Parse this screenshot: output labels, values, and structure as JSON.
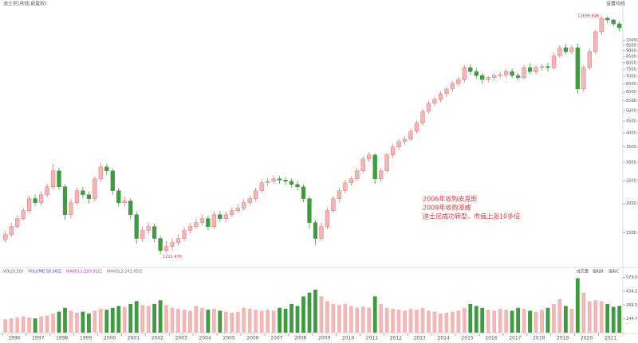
{
  "chart_data": [
    {
      "type": "candlestick",
      "title": "迪士尼(月线,前复权)",
      "right_label": "设置均线",
      "log_scale": true,
      "ylim": [
        1100,
        13500
      ],
      "yticks": [
        {
          "value": 1500,
          "label": "1500.00"
        },
        {
          "value": 2000,
          "label": "2000.00"
        },
        {
          "value": 2500,
          "label": "2500.00"
        },
        {
          "value": 3000,
          "label": "3000.00"
        },
        {
          "value": 3500,
          "label": "3500.00"
        },
        {
          "value": 4000,
          "label": "4000.00"
        },
        {
          "value": 4500,
          "label": "4500.00"
        },
        {
          "value": 5000,
          "label": "5000.00"
        },
        {
          "value": 5500,
          "label": "5500.00"
        },
        {
          "value": 6000,
          "label": "6000.00"
        },
        {
          "value": 6500,
          "label": "6500.00"
        },
        {
          "value": 7000,
          "label": "7000.00"
        },
        {
          "value": 7500,
          "label": "7500.00"
        },
        {
          "value": 8000,
          "label": "8000.00"
        },
        {
          "value": 8500,
          "label": "8500.00"
        },
        {
          "value": 9000,
          "label": "9000.00"
        },
        {
          "value": 9500,
          "label": "9500.00"
        },
        {
          "value": 10000,
          "label": "10000.00"
        }
      ],
      "up_color": "#f3b6b6",
      "up_stroke": "#e07878",
      "down_color": "#3f9b3f",
      "x_labels": [
        "1996",
        "1997",
        "1998",
        "1999",
        "2000",
        "2001",
        "2002",
        "2003",
        "2004",
        "2005",
        "2006",
        "2007",
        "2008",
        "2009",
        "2010",
        "2011",
        "2012",
        "2013",
        "2014",
        "2015",
        "2016",
        "2017",
        "2018",
        "2019",
        "2020",
        "2021"
      ],
      "open": [
        1400,
        1474,
        1594,
        1724,
        1864,
        2097,
        2017,
        2180,
        2357,
        2757,
        2357,
        1793,
        2017,
        2268,
        2180,
        2097,
        2550,
        2867,
        2757,
        2268,
        2017,
        2050,
        1793,
        1418,
        1533,
        1594,
        1418,
        1260,
        1311,
        1361,
        1418,
        1533,
        1594,
        1658,
        1724,
        1594,
        1793,
        1724,
        1793,
        1864,
        1909,
        2017,
        2097,
        2268,
        2452,
        2491,
        2550,
        2520,
        2491,
        2414,
        2357,
        2097,
        1658,
        1418,
        1594,
        1864,
        2097,
        2268,
        2452,
        2550,
        2757,
        3101,
        3225,
        2550,
        2757,
        3225,
        3487,
        3683,
        3770,
        4077,
        4409,
        4958,
        5362,
        5577,
        5890,
        6174,
        6521,
        6781,
        7625,
        7333,
        7051,
        6781,
        6900,
        7051,
        7100,
        7333,
        7051,
        6900,
        7625,
        7333,
        7625,
        7700,
        7625,
        8575,
        9273,
        8918,
        9273,
        6174,
        7625,
        8918,
        10845,
        12400,
        12195,
        11727
      ],
      "high": [
        1530,
        1650,
        1780,
        1920,
        2160,
        2180,
        2250,
        2430,
        2950,
        2850,
        2420,
        2090,
        2340,
        2360,
        2250,
        2620,
        2980,
        2960,
        2820,
        2330,
        2150,
        2100,
        1850,
        1600,
        1660,
        1640,
        1460,
        1380,
        1420,
        1480,
        1590,
        1650,
        1720,
        1790,
        1780,
        1850,
        1860,
        1850,
        1930,
        1980,
        2090,
        2170,
        2340,
        2530,
        2580,
        2640,
        2620,
        2600,
        2560,
        2500,
        2420,
        2150,
        1700,
        1660,
        1920,
        2160,
        2340,
        2530,
        2630,
        2840,
        3190,
        3320,
        3280,
        2840,
        3310,
        3580,
        3780,
        3870,
        4190,
        4530,
        5090,
        5500,
        5720,
        6040,
        6330,
        6680,
        6950,
        7820,
        7900,
        7600,
        7200,
        7060,
        7230,
        7280,
        7520,
        7550,
        7230,
        7820,
        7950,
        7820,
        7900,
        8000,
        8800,
        9510,
        9600,
        9500,
        9650,
        7820,
        9150,
        11100,
        12695.846,
        12600,
        12300,
        12000
      ],
      "low": [
        1360,
        1440,
        1560,
        1690,
        1820,
        1950,
        1960,
        2120,
        2300,
        2290,
        1700,
        1720,
        1960,
        2100,
        2000,
        2040,
        2480,
        2650,
        2180,
        1940,
        1930,
        1720,
        1350,
        1370,
        1480,
        1370,
        1211.476,
        1235,
        1250,
        1320,
        1380,
        1490,
        1550,
        1610,
        1540,
        1560,
        1670,
        1670,
        1740,
        1820,
        1860,
        1960,
        2040,
        2210,
        2380,
        2420,
        2430,
        2400,
        2330,
        2280,
        2020,
        1560,
        1330,
        1380,
        1550,
        1820,
        2040,
        2200,
        2380,
        2490,
        2700,
        3010,
        2420,
        2480,
        2700,
        3140,
        3400,
        3560,
        3690,
        3980,
        4300,
        4840,
        5200,
        5420,
        5720,
        5990,
        6330,
        6600,
        7100,
        6850,
        6500,
        6580,
        6700,
        6850,
        6900,
        6850,
        6700,
        6780,
        7150,
        7120,
        7400,
        7300,
        7500,
        8400,
        8700,
        8700,
        5900,
        6000,
        7450,
        8700,
        10500,
        11800,
        11400,
        10900
      ],
      "close": [
        1474,
        1594,
        1724,
        1864,
        2097,
        2017,
        2180,
        2357,
        2757,
        2357,
        1793,
        2017,
        2268,
        2180,
        2097,
        2550,
        2867,
        2757,
        2268,
        2017,
        2050,
        1793,
        1418,
        1533,
        1594,
        1418,
        1260,
        1311,
        1361,
        1418,
        1533,
        1594,
        1658,
        1724,
        1594,
        1793,
        1724,
        1793,
        1864,
        1909,
        2017,
        2097,
        2268,
        2452,
        2491,
        2550,
        2520,
        2491,
        2414,
        2357,
        2097,
        1658,
        1418,
        1594,
        1864,
        2097,
        2268,
        2452,
        2550,
        2757,
        3101,
        3225,
        2550,
        2757,
        3225,
        3487,
        3683,
        3770,
        4077,
        4409,
        4958,
        5362,
        5577,
        5890,
        6174,
        6521,
        6781,
        7625,
        7333,
        7051,
        6781,
        6900,
        7051,
        7100,
        7333,
        7051,
        6900,
        7625,
        7333,
        7625,
        7700,
        7625,
        8575,
        9273,
        8918,
        9273,
        6174,
        7625,
        8918,
        10845,
        12400,
        12195,
        11727,
        11277
      ],
      "notes": [
        "2006年收购皮克斯",
        "2009年收购漫威",
        "迪士尼成功转型，市值上涨10多倍"
      ]
    },
    {
      "type": "volume",
      "legend": [
        "VOL(5,10)",
        "VOLUME:58.06亿",
        "MAVOL1:299.91亿",
        "MAVOL2:241.85亿"
      ],
      "buttons": [
        "成交量",
        "指标B",
        "指标C"
      ],
      "ylim": [
        0,
        600
      ],
      "yticks": [
        {
          "value": 144.75,
          "label": "144.75M"
        },
        {
          "value": 289.5,
          "label": "289.50M"
        },
        {
          "value": 434.25,
          "label": "434.25M"
        },
        {
          "value": 579,
          "label": "579.00M"
        }
      ],
      "values": [
        140,
        150,
        160,
        170,
        160,
        150,
        170,
        180,
        200,
        220,
        260,
        230,
        210,
        220,
        200,
        230,
        250,
        240,
        260,
        280,
        270,
        300,
        330,
        290,
        280,
        300,
        340,
        290,
        260,
        250,
        240,
        230,
        280,
        260,
        240,
        250,
        230,
        220,
        210,
        220,
        260,
        250,
        240,
        230,
        240,
        230,
        260,
        250,
        300,
        280,
        380,
        420,
        450,
        380,
        330,
        300,
        290,
        300,
        280,
        260,
        270,
        260,
        380,
        300,
        260,
        250,
        240,
        230,
        250,
        240,
        260,
        230,
        220,
        200,
        210,
        220,
        230,
        260,
        300,
        280,
        260,
        240,
        230,
        250,
        240,
        230,
        260,
        250,
        230,
        220,
        240,
        260,
        300,
        350,
        280,
        250,
        570,
        420,
        330,
        340,
        330,
        300,
        270,
        280
      ]
    }
  ]
}
